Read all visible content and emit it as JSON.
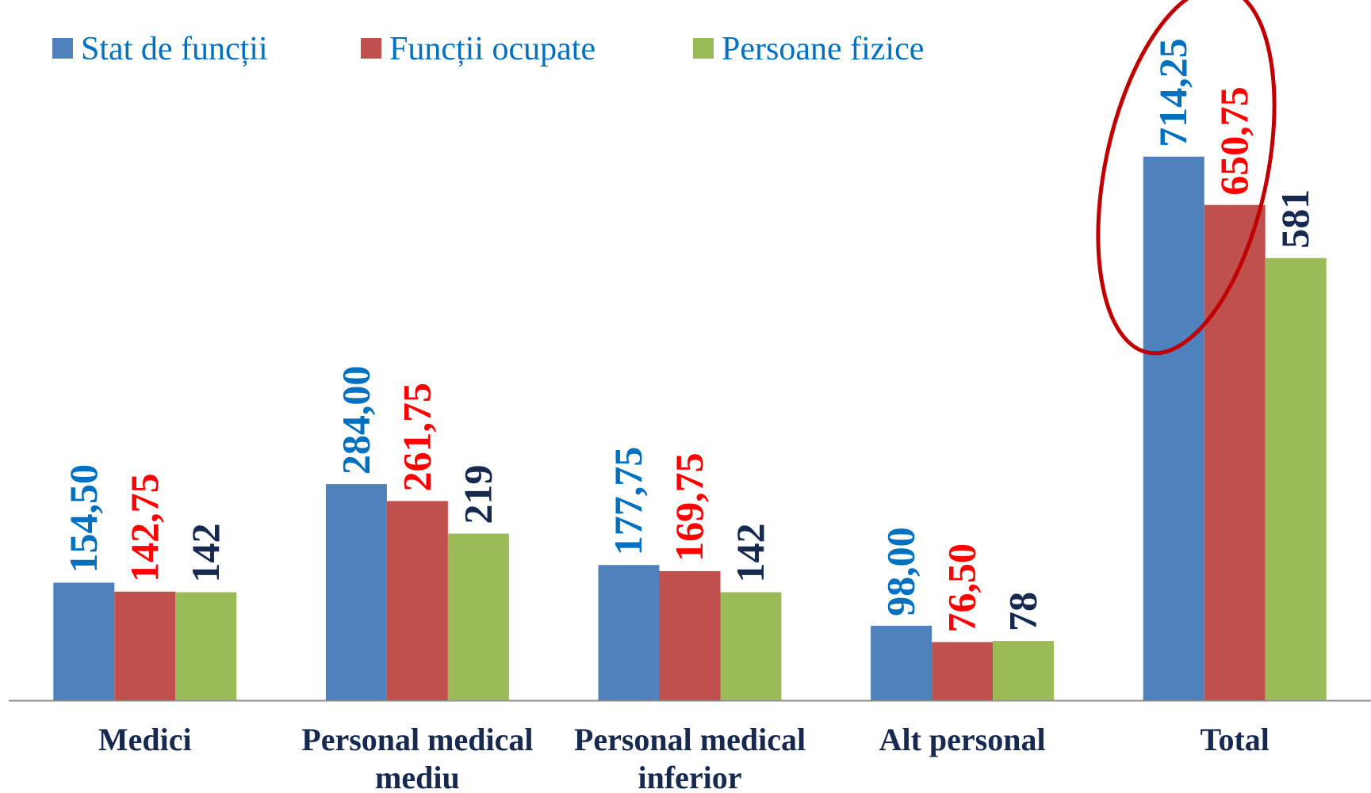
{
  "chart_data": {
    "type": "bar",
    "categories": [
      "Medici",
      "Personal medical mediu",
      "Personal medical inferior",
      "Alt personal",
      "Total"
    ],
    "series": [
      {
        "name": "Stat de funcții",
        "color": "#4f81bd",
        "label_color": "#0070c0",
        "values": [
          154.5,
          284,
          177.75,
          98,
          714.25
        ],
        "value_labels": [
          "154,50",
          "284,00",
          "177,75",
          "98,00",
          "714,25"
        ]
      },
      {
        "name": "Funcții ocupate",
        "color": "#c0504d",
        "label_color": "#ff0000",
        "values": [
          142.75,
          261.75,
          169.75,
          76.5,
          650.75
        ],
        "value_labels": [
          "142,75",
          "261,75",
          "169,75",
          "76,50",
          "650,75"
        ]
      },
      {
        "name": "Persoane fizice",
        "color": "#9bbb59",
        "label_color": "#17294f",
        "values": [
          142,
          219,
          142,
          78,
          581
        ]
      }
    ],
    "ylim": [
      0,
      920
    ],
    "grid": false
  }
}
